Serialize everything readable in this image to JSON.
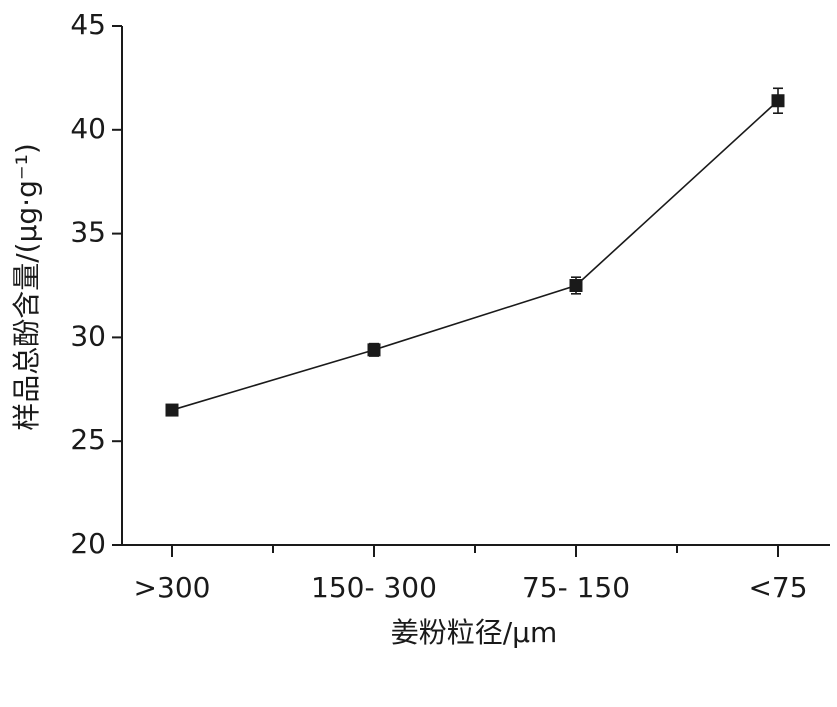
{
  "chart_data": {
    "type": "line",
    "categories": [
      ">300",
      "150- 300",
      "75- 150",
      "<75"
    ],
    "values": [
      26.5,
      29.4,
      32.5,
      41.4
    ],
    "errors": [
      0.2,
      0.3,
      0.4,
      0.6
    ],
    "color": "#1a1a1a",
    "xlabel": "姜粉粒径/μm",
    "ylabel": "样品总酚含量/(μg·g⁻¹)",
    "ylim": [
      20,
      45
    ],
    "yticks": [
      20,
      25,
      30,
      35,
      40,
      45
    ]
  }
}
